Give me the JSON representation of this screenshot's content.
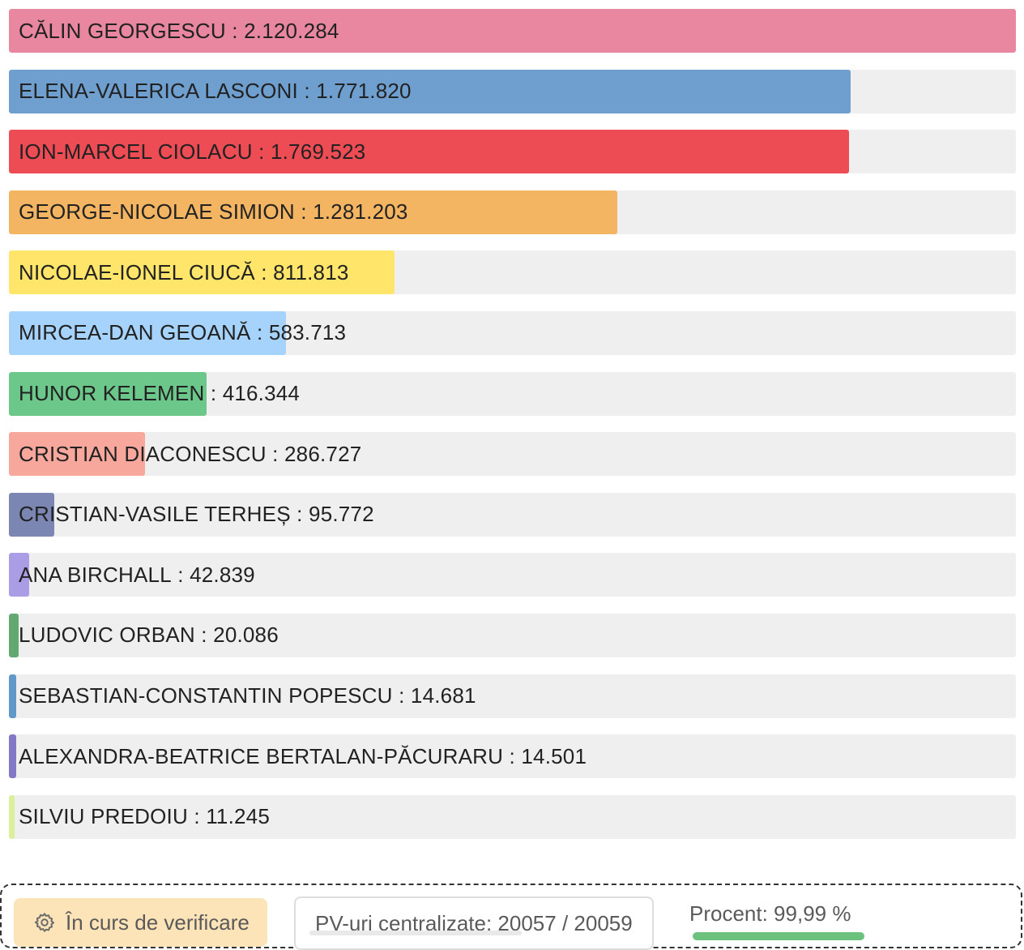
{
  "chart_data": {
    "type": "bar",
    "orientation": "horizontal",
    "separator": " : ",
    "max_value": 2120284,
    "bars": [
      {
        "name": "CĂLIN GEORGESCU",
        "value": 2120284,
        "value_label": "2.120.284",
        "color": "#e8879f"
      },
      {
        "name": "ELENA-VALERICA LASCONI",
        "value": 1771820,
        "value_label": "1.771.820",
        "color": "#6e9fcf"
      },
      {
        "name": "ION-MARCEL CIOLACU",
        "value": 1769523,
        "value_label": "1.769.523",
        "color": "#ee4c55"
      },
      {
        "name": "GEORGE-NICOLAE SIMION",
        "value": 1281203,
        "value_label": "1.281.203",
        "color": "#f3b562"
      },
      {
        "name": "NICOLAE-IONEL CIUCĂ",
        "value": 811813,
        "value_label": "811.813",
        "color": "#ffe66a"
      },
      {
        "name": "MIRCEA-DAN GEOANĂ",
        "value": 583713,
        "value_label": "583.713",
        "color": "#a6d3fb"
      },
      {
        "name": "HUNOR KELEMEN",
        "value": 416344,
        "value_label": "416.344",
        "color": "#6cc88a"
      },
      {
        "name": "CRISTIAN DIACONESCU",
        "value": 286727,
        "value_label": "286.727",
        "color": "#f8a79c"
      },
      {
        "name": "CRISTIAN-VASILE TERHEȘ",
        "value": 95772,
        "value_label": "95.772",
        "color": "#7b86b2"
      },
      {
        "name": "ANA BIRCHALL",
        "value": 42839,
        "value_label": "42.839",
        "color": "#ab9ce6"
      },
      {
        "name": "LUDOVIC ORBAN",
        "value": 20086,
        "value_label": "20.086",
        "color": "#63a870"
      },
      {
        "name": "SEBASTIAN-CONSTANTIN POPESCU",
        "value": 14681,
        "value_label": "14.681",
        "color": "#5f98c9"
      },
      {
        "name": "ALEXANDRA-BEATRICE BERTALAN-PĂCURARU",
        "value": 14501,
        "value_label": "14.501",
        "color": "#8378c6"
      },
      {
        "name": "SILVIU PREDOIU",
        "value": 11245,
        "value_label": "11.245",
        "color": "#dcef9a"
      }
    ]
  },
  "footer": {
    "status_label": "În curs de verificare",
    "status_icon": "gear-icon",
    "pv_label": "PV-uri centralizate: 20057 / 20059",
    "percent_label": "Procent: 99,99 %",
    "percent_value": 99.99,
    "percent_color": "#6cc17d"
  }
}
